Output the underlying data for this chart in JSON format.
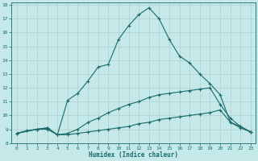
{
  "xlabel": "Humidex (Indice chaleur)",
  "bg_color": "#c5e8e8",
  "grid_color": "#b0d0d0",
  "line_color": "#1a6b6b",
  "xlim": [
    -0.5,
    23.5
  ],
  "ylim": [
    8,
    18.2
  ],
  "xticks": [
    0,
    1,
    2,
    3,
    4,
    5,
    6,
    7,
    8,
    9,
    10,
    11,
    12,
    13,
    14,
    15,
    16,
    17,
    18,
    19,
    20,
    21,
    22,
    23
  ],
  "yticks": [
    8,
    9,
    10,
    11,
    12,
    13,
    14,
    15,
    16,
    17,
    18
  ],
  "line1_x": [
    0,
    1,
    2,
    3,
    4,
    5,
    6,
    7,
    8,
    9,
    10,
    11,
    12,
    13,
    14,
    15,
    16,
    17,
    18,
    19,
    20,
    21,
    22,
    23
  ],
  "line1_y": [
    8.7,
    8.9,
    9.0,
    9.0,
    8.6,
    11.1,
    11.6,
    12.5,
    13.5,
    13.7,
    15.5,
    16.5,
    17.3,
    17.8,
    17.0,
    15.5,
    14.3,
    13.8,
    13.0,
    12.3,
    11.5,
    9.5,
    9.2,
    8.8
  ],
  "line2_x": [
    0,
    2,
    3,
    4,
    5,
    6,
    7,
    8,
    9,
    10,
    11,
    12,
    13,
    14,
    15,
    16,
    17,
    18,
    19,
    20,
    21,
    22,
    23
  ],
  "line2_y": [
    8.7,
    9.0,
    9.1,
    8.6,
    8.7,
    9.0,
    9.5,
    9.8,
    10.2,
    10.5,
    10.8,
    11.0,
    11.3,
    11.5,
    11.6,
    11.7,
    11.8,
    11.9,
    12.0,
    10.8,
    9.8,
    9.2,
    8.8
  ],
  "line3_x": [
    0,
    2,
    3,
    4,
    5,
    6,
    7,
    8,
    9,
    10,
    11,
    12,
    13,
    14,
    15,
    16,
    17,
    18,
    19,
    20,
    21,
    22,
    23
  ],
  "line3_y": [
    8.7,
    9.0,
    9.1,
    8.6,
    8.6,
    8.7,
    8.8,
    8.9,
    9.0,
    9.1,
    9.2,
    9.4,
    9.5,
    9.7,
    9.8,
    9.9,
    10.0,
    10.1,
    10.2,
    10.4,
    9.5,
    9.1,
    8.8
  ]
}
